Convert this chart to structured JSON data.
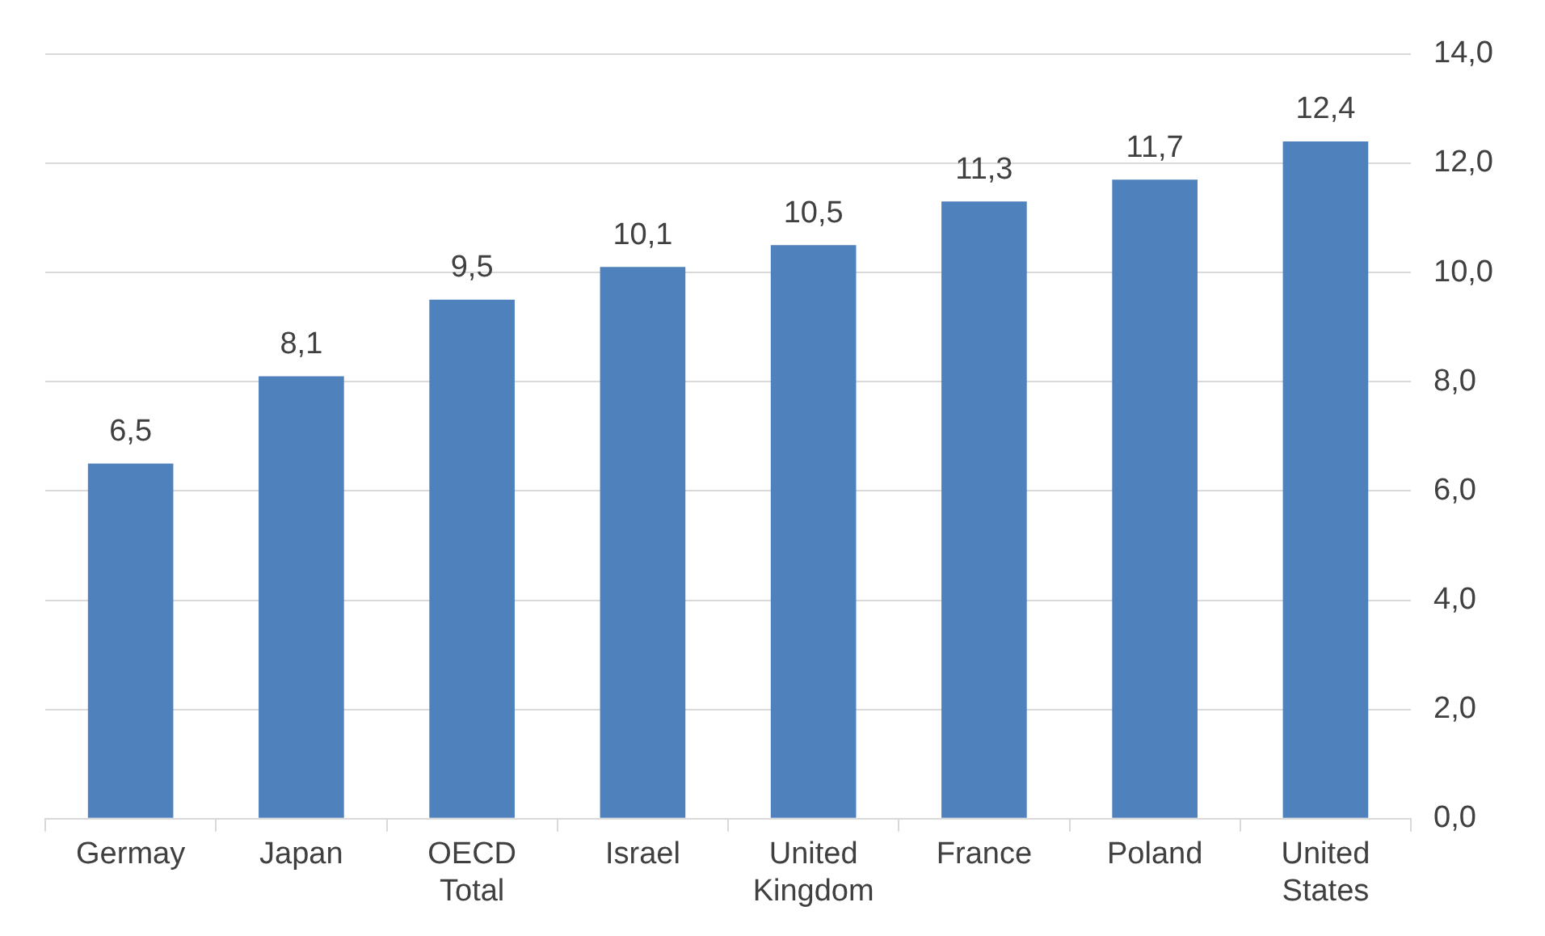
{
  "chart_data": {
    "type": "bar",
    "categories": [
      "Germay",
      "Japan",
      "OECD Total",
      "Israel",
      "United Kingdom",
      "France",
      "Poland",
      "United States"
    ],
    "values": [
      6.5,
      8.1,
      9.5,
      10.1,
      10.5,
      11.3,
      11.7,
      12.4
    ],
    "value_labels": [
      "6,5",
      "8,1",
      "9,5",
      "10,1",
      "10,5",
      "11,3",
      "11,7",
      "12,4"
    ],
    "color": "#4f81bd",
    "ylim": [
      0,
      14
    ],
    "yticks": [
      {
        "value": 0,
        "label": "0,0"
      },
      {
        "value": 2,
        "label": "2,0"
      },
      {
        "value": 4,
        "label": "4,0"
      },
      {
        "value": 6,
        "label": "6,0"
      },
      {
        "value": 8,
        "label": "8,0"
      },
      {
        "value": 10,
        "label": "10,0"
      },
      {
        "value": 12,
        "label": "12,0"
      },
      {
        "value": 14,
        "label": "14,0"
      }
    ],
    "grid": "y",
    "legend": false
  }
}
